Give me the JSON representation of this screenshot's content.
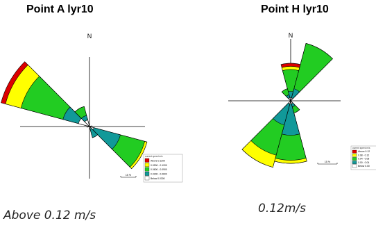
{
  "colors": {
    "above": "#dd0000",
    "band2": "#ffff00",
    "band3": "#22cc22",
    "band4": "#119999",
    "below": "#ffffff",
    "axis": "#000000"
  },
  "chart_data": [
    {
      "type": "windrose",
      "title": "Point A lyr10",
      "north_label": "N",
      "scale_label": "15 %",
      "legend_title": "current speed m/s",
      "legend": [
        "Above  0.1200",
        "0.0900 - 0.1200",
        "0.0600 - 0.0900",
        "0.0300 - 0.0600",
        "Below  0.0300"
      ],
      "caption": "Above 0.12 m/s",
      "sectors": [
        {
          "direction": 300,
          "cumulative": [
            5,
            12,
            31,
            38,
            40
          ]
        },
        {
          "direction": 330,
          "cumulative": [
            3,
            5,
            9,
            9,
            9
          ]
        },
        {
          "direction": 270,
          "cumulative": [
            1,
            1,
            1,
            1,
            1
          ]
        },
        {
          "direction": 120,
          "cumulative": [
            2,
            14,
            25,
            26,
            26
          ]
        },
        {
          "direction": 150,
          "cumulative": [
            1,
            5,
            5,
            5,
            5
          ]
        },
        {
          "direction": 90,
          "cumulative": [
            1,
            1,
            1,
            1,
            1
          ]
        }
      ]
    },
    {
      "type": "windrose",
      "title": "Point H lyr10",
      "north_label": "N",
      "scale_label": "15 %",
      "legend_title": "current speed m/s",
      "legend": [
        "Above  0.12",
        "0.08 - 0.12",
        "0.04 - 0.08",
        "0.00 - 0.04",
        "Below  0.00"
      ],
      "caption": "0.12m/s",
      "sectors": [
        {
          "direction": 30,
          "cumulative": [
            1,
            4,
            19,
            19,
            19
          ]
        },
        {
          "direction": 0,
          "cumulative": [
            1,
            3,
            10,
            11,
            12
          ]
        },
        {
          "direction": 330,
          "cumulative": [
            1,
            2,
            4,
            4,
            4
          ]
        },
        {
          "direction": 180,
          "cumulative": [
            1,
            11,
            19,
            20,
            20
          ]
        },
        {
          "direction": 210,
          "cumulative": [
            1,
            8,
            18,
            22,
            22
          ]
        },
        {
          "direction": 150,
          "cumulative": [
            1,
            2,
            4,
            4,
            4
          ]
        }
      ]
    }
  ]
}
